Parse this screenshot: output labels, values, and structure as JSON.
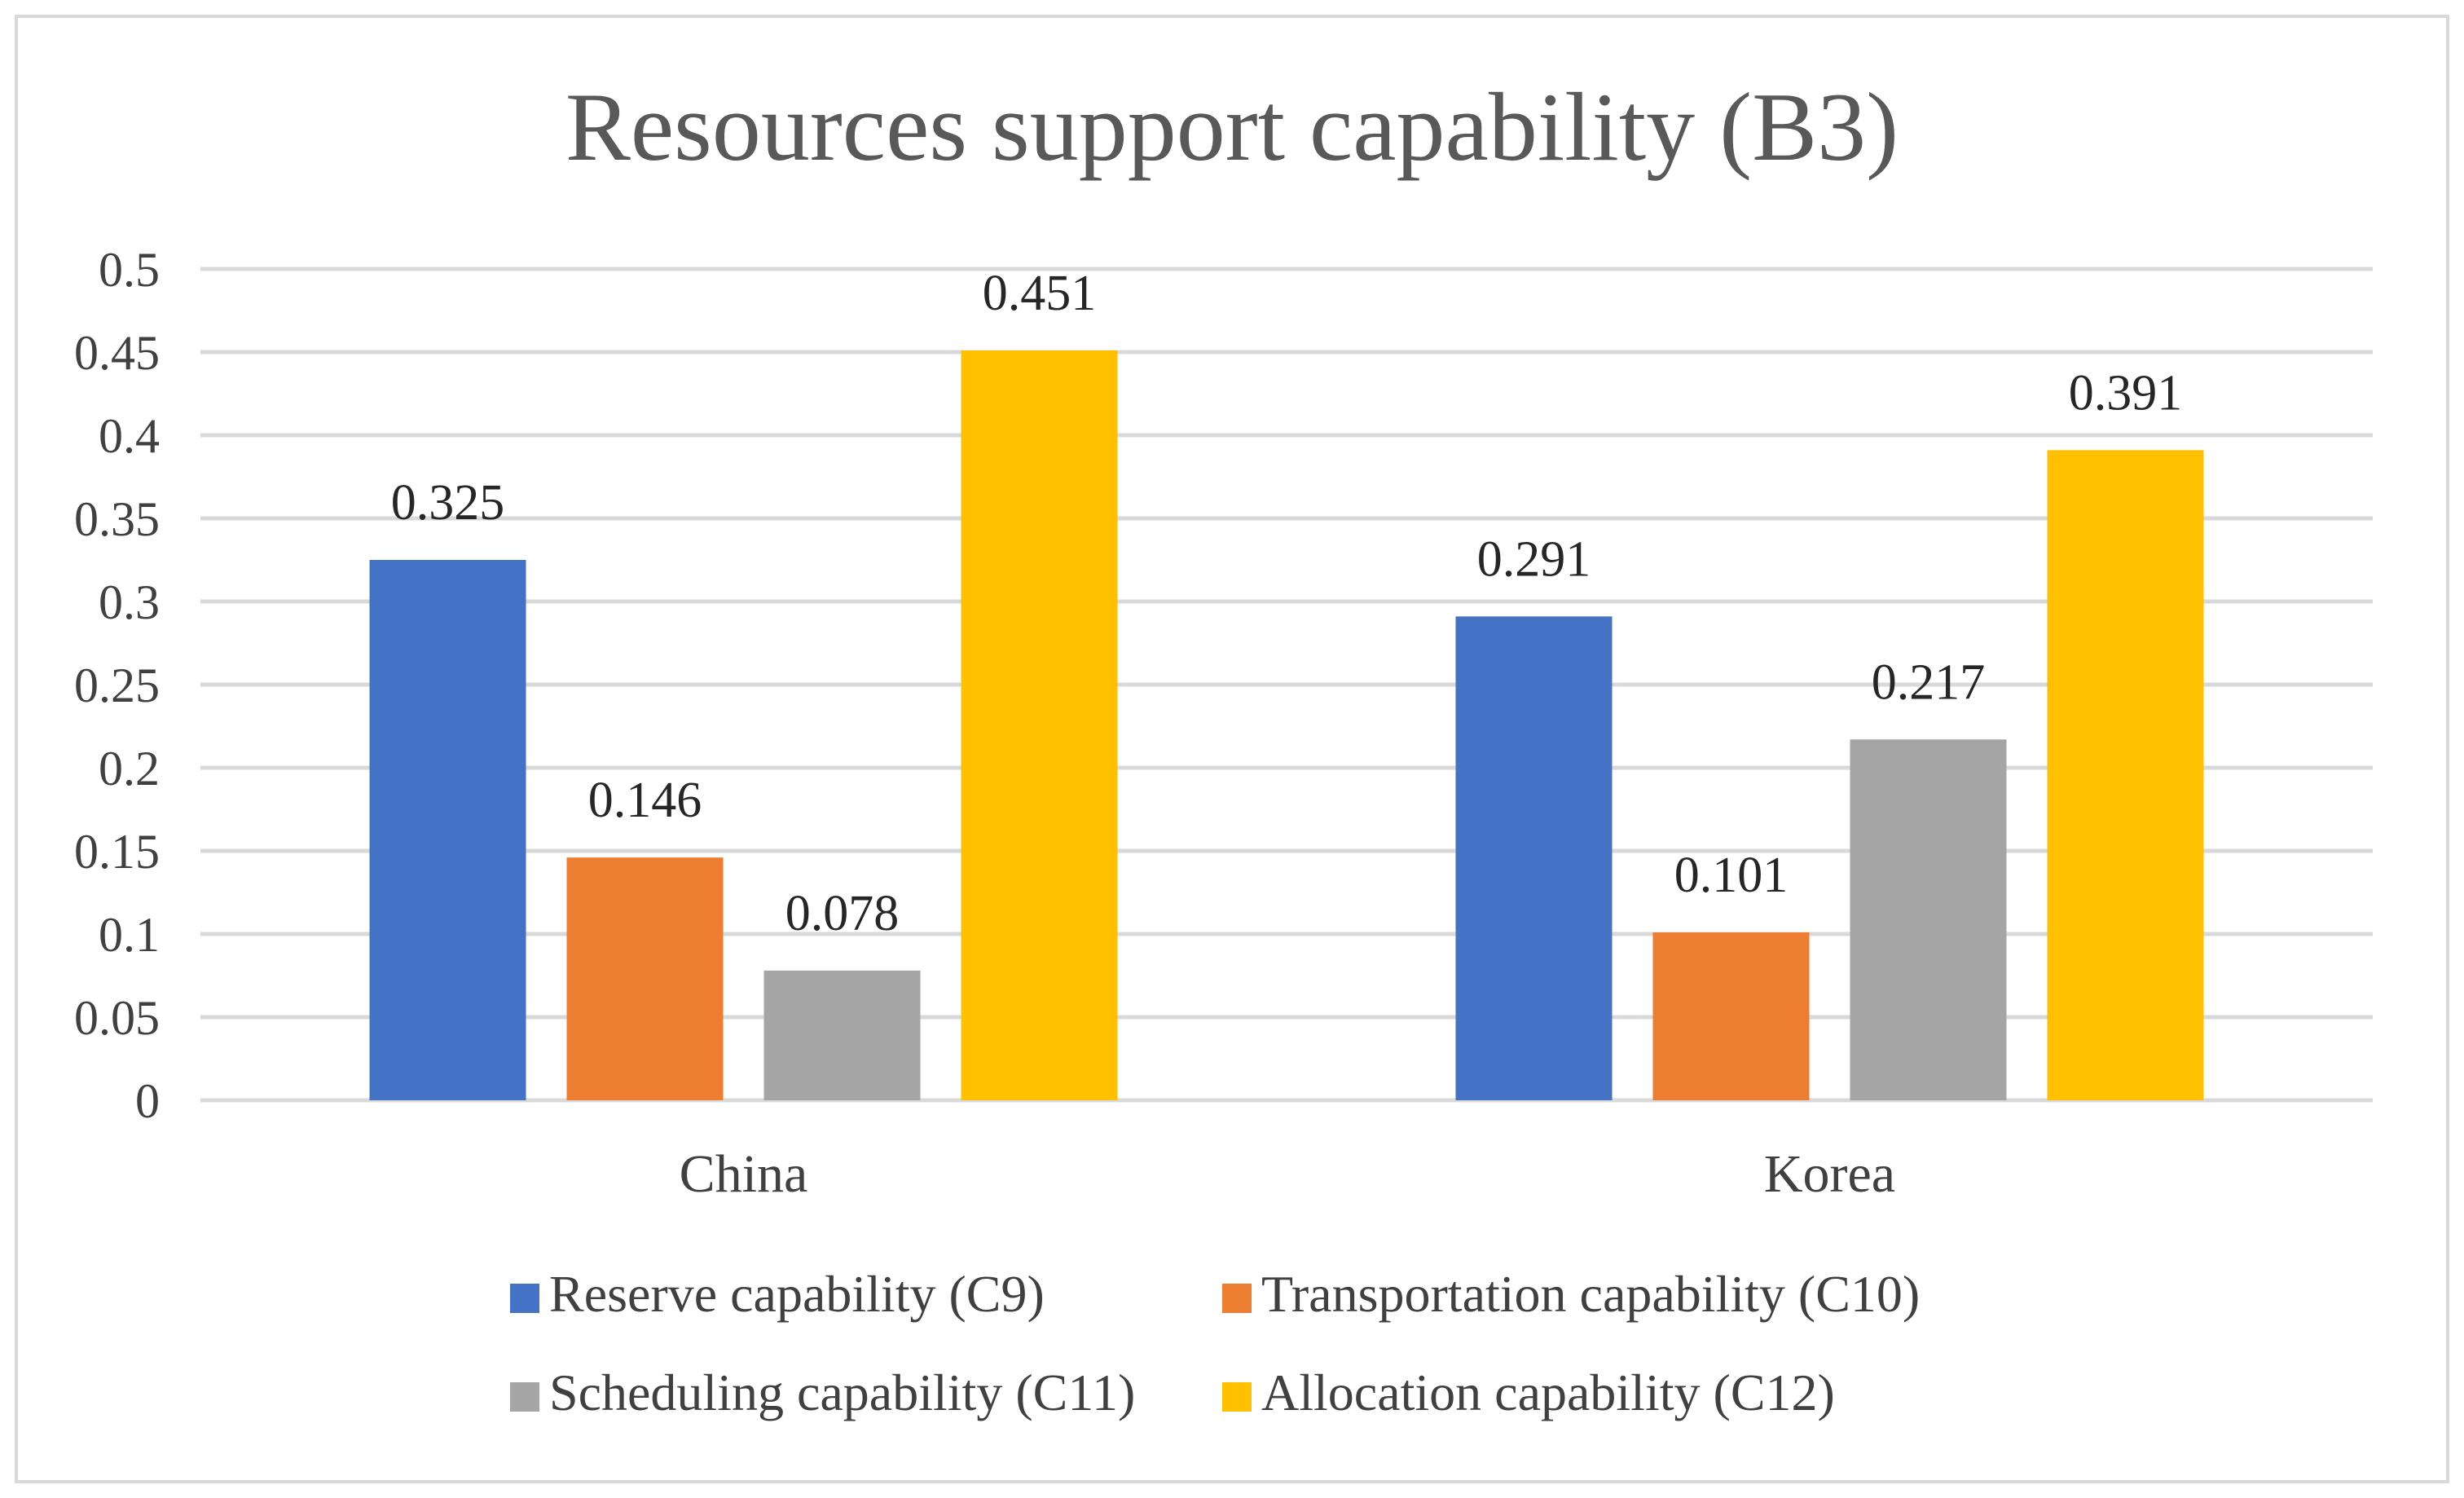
{
  "chart_data": {
    "type": "bar",
    "title": "Resources support capability (B3)",
    "categories": [
      "China",
      "Korea"
    ],
    "series": [
      {
        "name": "Reserve capability (C9)",
        "color": "#4472C4",
        "values": [
          0.325,
          0.291
        ],
        "labels": [
          "0.325",
          "0.291"
        ]
      },
      {
        "name": "Transportation capability (C10)",
        "color": "#ED7D31",
        "values": [
          0.146,
          0.101
        ],
        "labels": [
          "0.146",
          "0.101"
        ]
      },
      {
        "name": "Scheduling capability (C11)",
        "color": "#A5A5A5",
        "values": [
          0.078,
          0.217
        ],
        "labels": [
          "0.078",
          "0.217"
        ]
      },
      {
        "name": "Allocation capability (C12)",
        "color": "#FFC000",
        "values": [
          0.451,
          0.391
        ],
        "labels": [
          "0.451",
          "0.391"
        ]
      }
    ],
    "yticks": [
      "0",
      "0.05",
      "0.1",
      "0.15",
      "0.2",
      "0.25",
      "0.3",
      "0.35",
      "0.4",
      "0.45",
      "0.5"
    ],
    "ylim": [
      0,
      0.5
    ],
    "xlabel": "",
    "ylabel": "",
    "grid": true,
    "legend_position": "bottom"
  }
}
